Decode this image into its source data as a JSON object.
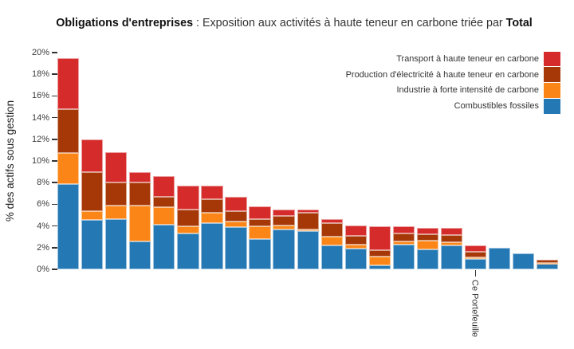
{
  "title": {
    "bold_prefix": "Obligations d'entreprises",
    "separator": " : ",
    "text": "Exposition aux activités à haute teneur en carbone triée par ",
    "bold_suffix": "Total"
  },
  "legend": [
    {
      "key": "transport",
      "label": "Transport à haute teneur en carbone",
      "color": "#d62b2b"
    },
    {
      "key": "electricite",
      "label": "Production d'électricité à haute teneur en carbone",
      "color": "#a63808"
    },
    {
      "key": "industrie",
      "label": "Industrie à forte intensité de carbone",
      "color": "#fb8617"
    },
    {
      "key": "fossiles",
      "label": "Combustibles fossiles",
      "color": "#2478b4"
    }
  ],
  "chart_data": {
    "type": "bar",
    "stacked": true,
    "title": "Obligations d'entreprises : Exposition aux activités à haute teneur en carbone triée par Total",
    "xlabel": "",
    "ylabel": "% des actifs sous gestion",
    "ylim": [
      0,
      20
    ],
    "ytick_labels": [
      "0%",
      "2%",
      "4%",
      "6%",
      "8%",
      "10%",
      "12%",
      "14%",
      "16%",
      "18%",
      "20%"
    ],
    "grid": false,
    "legend_position": "top-right",
    "unit": "% des actifs sous gestion",
    "sorted_by": "Total",
    "n_bars": 21,
    "series": [
      {
        "key": "fossiles",
        "name": "Combustibles fossiles",
        "color": "#2478b4",
        "values": [
          7.9,
          4.55,
          4.6,
          2.55,
          4.1,
          3.3,
          4.3,
          3.9,
          2.8,
          3.7,
          3.5,
          2.2,
          1.9,
          0.4,
          2.3,
          1.85,
          2.2,
          0.95,
          1.95,
          1.5,
          0.5
        ]
      },
      {
        "key": "industrie",
        "name": "Industrie à forte intensité de carbone",
        "color": "#fb8617",
        "values": [
          2.8,
          0.8,
          1.25,
          3.3,
          1.6,
          0.65,
          0.95,
          0.5,
          1.2,
          0.35,
          0.2,
          0.85,
          0.4,
          0.75,
          0.25,
          0.8,
          0.3,
          0.15,
          0,
          0,
          0.1
        ]
      },
      {
        "key": "electricite",
        "name": "Production d'électricité à haute teneur en carbone",
        "color": "#a63808",
        "values": [
          4.05,
          3.65,
          2.2,
          2.15,
          1.0,
          1.55,
          1.2,
          1.0,
          0.6,
          0.9,
          1.5,
          1.2,
          0.8,
          0.65,
          0.75,
          0.55,
          0.65,
          0.5,
          0,
          0,
          0.3
        ]
      },
      {
        "key": "transport",
        "name": "Transport à haute teneur en carbone",
        "color": "#d62b2b",
        "values": [
          4.7,
          3.0,
          2.75,
          1.0,
          1.9,
          2.25,
          1.25,
          1.3,
          1.2,
          0.6,
          0.35,
          0.4,
          0.95,
          2.2,
          0.7,
          0.65,
          0.65,
          0.6,
          0,
          0,
          0
        ]
      }
    ],
    "totals": [
      19.45,
      12.0,
      10.8,
      9.0,
      8.6,
      7.75,
      7.7,
      6.7,
      5.8,
      5.55,
      5.55,
      4.65,
      4.05,
      4.0,
      4.0,
      3.85,
      3.8,
      2.2,
      1.95,
      1.5,
      0.9
    ],
    "x_tick": {
      "bar_index": 17,
      "label": "Ce Portefeuille"
    }
  }
}
